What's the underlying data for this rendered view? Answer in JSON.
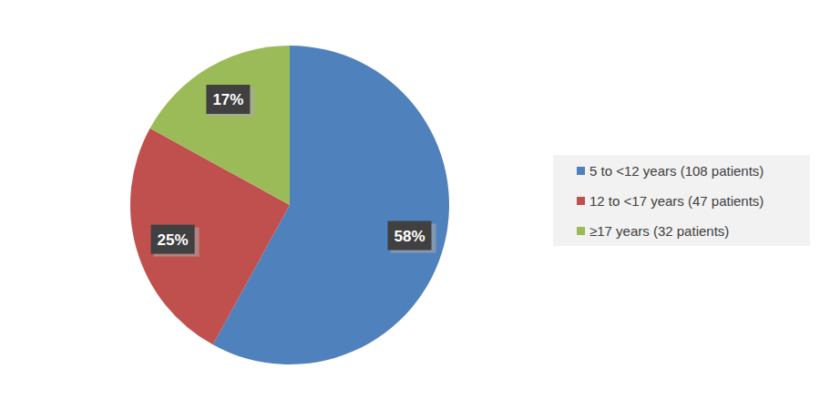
{
  "chart_data": {
    "type": "pie",
    "categories": [
      "5 to <12 years (108 patients)",
      "12 to <17 years (47 patients)",
      "≥17 years (32 patients)"
    ],
    "values": [
      58,
      25,
      17
    ],
    "value_labels": [
      "58%",
      "25%",
      "17%"
    ],
    "colors": [
      "#4f81bd",
      "#c0504d",
      "#9bbb59"
    ],
    "data_labels": true,
    "legend": "right"
  }
}
